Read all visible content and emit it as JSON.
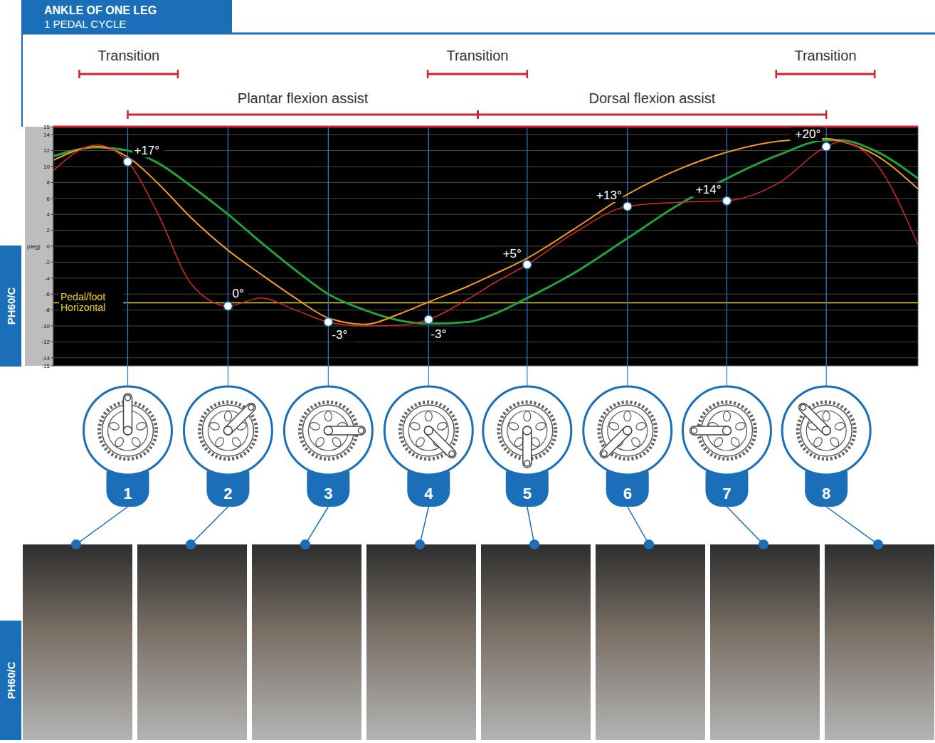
{
  "header": {
    "title": "ANKLE OF ONE LEG",
    "subtitle": "1 PEDAL CYCLE"
  },
  "side_label": "PH60/C",
  "phases": {
    "transitions": [
      {
        "label": "Transition",
        "start": 3,
        "end": 14.4
      },
      {
        "label": "Transition",
        "start": 43.3,
        "end": 54.8
      },
      {
        "label": "Transition",
        "start": 83.6,
        "end": 95
      }
    ],
    "assists": [
      {
        "label": "Plantar flexion assist",
        "start": 8.6,
        "end": 49.1
      },
      {
        "label": "Dorsal flexion assist",
        "start": 49.1,
        "end": 89.4
      }
    ]
  },
  "positions": [
    {
      "number": "1",
      "crank_angle": 0
    },
    {
      "number": "2",
      "crank_angle": 45
    },
    {
      "number": "3",
      "crank_angle": 90
    },
    {
      "number": "4",
      "crank_angle": 135
    },
    {
      "number": "5",
      "crank_angle": 180
    },
    {
      "number": "6",
      "crank_angle": 225
    },
    {
      "number": "7",
      "crank_angle": 270
    },
    {
      "number": "8",
      "crank_angle": 315
    }
  ],
  "chart_data": {
    "type": "line",
    "y_label": "(deg)",
    "x": [
      0,
      5,
      8.6,
      12,
      16,
      20.2,
      24,
      28,
      31.8,
      36,
      40,
      43.4,
      48,
      51,
      54.8,
      60,
      66.4,
      72,
      77.9,
      84,
      89.4,
      91,
      95,
      100
    ],
    "series": [
      {
        "color": "#1fa33a",
        "values": [
          11.3,
          12.4,
          12,
          10.5,
          7.5,
          4,
          0.5,
          -3,
          -6,
          -8,
          -9.3,
          -9.7,
          -9.5,
          -8.5,
          -6.5,
          -3.5,
          1,
          5,
          8.5,
          11.5,
          13.3,
          13.3,
          12,
          8.5
        ]
      },
      {
        "color": "#f39a1e",
        "values": [
          10.8,
          12.5,
          11.2,
          8,
          3.5,
          -0.5,
          -3.5,
          -6.5,
          -9,
          -9.8,
          -8.5,
          -7,
          -5,
          -3.5,
          -1.5,
          2,
          6.5,
          9.5,
          11.8,
          13.2,
          13.5,
          13.2,
          11.5,
          7.2
        ]
      },
      {
        "color": "#d62a1e",
        "values": [
          9.5,
          12.7,
          10.6,
          4.3,
          -4.8,
          -7.5,
          -6.5,
          -8,
          -9.5,
          -10,
          -9.9,
          -9.2,
          -6.6,
          -4.6,
          -2.3,
          1.5,
          5,
          5.5,
          5.7,
          8,
          12.5,
          13.1,
          10.6,
          0.2
        ]
      }
    ],
    "xlim": [
      0,
      100
    ],
    "xticks": [
      0,
      2.5,
      5,
      7.5,
      10,
      12.5,
      15,
      17.5,
      20,
      22.5,
      25,
      27.5,
      30,
      32.5,
      35,
      37.5,
      40,
      42.5,
      45,
      47.5,
      50,
      52.5,
      55,
      57.5,
      60,
      62.5,
      65,
      67.5,
      70,
      72.5,
      75,
      77.5,
      80,
      82.5,
      85,
      87.5,
      90,
      92.5,
      95,
      97.5,
      100
    ],
    "ylim": [
      -15,
      15
    ],
    "yticks": [
      -15,
      -14,
      -12,
      -10,
      -8,
      -6,
      -4,
      -2,
      0,
      2,
      4,
      6,
      8,
      10,
      12,
      14,
      15
    ],
    "grid": true,
    "tick_labels": "y",
    "reference_line": {
      "y": -7.1,
      "color": "#e8d23a",
      "text": [
        "Pedal/foot",
        "Horizontal"
      ]
    },
    "annotations": [
      {
        "x": 8.6,
        "y": 10.6,
        "text": "+17°"
      },
      {
        "x": 20.2,
        "y": -7.5,
        "text": "0°"
      },
      {
        "x": 31.8,
        "y": -9.5,
        "text": "-3°"
      },
      {
        "x": 43.4,
        "y": -9.2,
        "text": "-3°"
      },
      {
        "x": 54.8,
        "y": -2.3,
        "text": "+5°"
      },
      {
        "x": 66.4,
        "y": 5,
        "text": "+13°"
      },
      {
        "x": 77.9,
        "y": 5.7,
        "text": "+14°"
      },
      {
        "x": 89.4,
        "y": 12.5,
        "text": "+20°"
      }
    ]
  }
}
